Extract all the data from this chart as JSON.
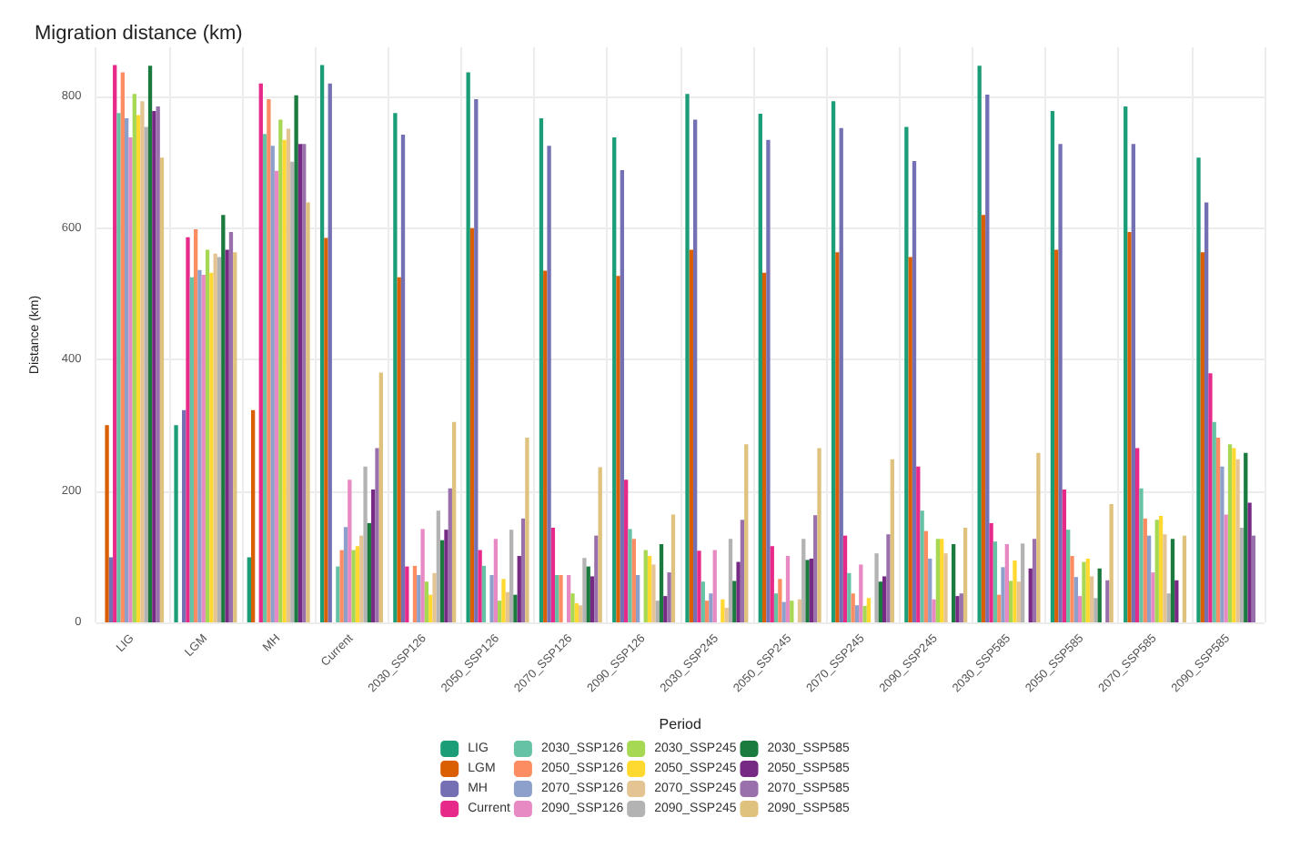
{
  "chart_data": {
    "type": "bar",
    "title": "Migration distance (km)",
    "xlabel": "Period",
    "ylabel": "Distance (km)",
    "categories": [
      "LIG",
      "LGM",
      "MH",
      "Current",
      "2030_SSP126",
      "2050_SSP126",
      "2070_SSP126",
      "2090_SSP126",
      "2030_SSP245",
      "2050_SSP245",
      "2070_SSP245",
      "2090_SSP245",
      "2030_SSP585",
      "2050_SSP585",
      "2070_SSP585",
      "2090_SSP585"
    ],
    "ylim": [
      0,
      875
    ],
    "yticks": [
      0,
      200,
      400,
      600,
      800
    ],
    "grid": true,
    "legend": "bottom",
    "series": [
      {
        "name": "LIG",
        "color": "#1b9e77",
        "values": [
          null,
          300,
          99,
          848,
          775,
          837,
          767,
          738,
          804,
          774,
          793,
          754,
          847,
          778,
          785,
          707
        ]
      },
      {
        "name": "LGM",
        "color": "#d95f02",
        "values": [
          300,
          null,
          323,
          585,
          525,
          600,
          535,
          527,
          567,
          532,
          563,
          556,
          620,
          567,
          594,
          563
        ]
      },
      {
        "name": "MH",
        "color": "#7570b3",
        "values": [
          99,
          323,
          null,
          820,
          742,
          796,
          725,
          688,
          765,
          734,
          752,
          702,
          803,
          728,
          728,
          639
        ]
      },
      {
        "name": "Current",
        "color": "#e7298a",
        "values": [
          848,
          586,
          820,
          null,
          85,
          110,
          144,
          217,
          109,
          116,
          132,
          237,
          151,
          202,
          265,
          379
        ]
      },
      {
        "name": "2030_SSP126",
        "color": "#66c2a5",
        "values": [
          775,
          525,
          743,
          85,
          null,
          86,
          72,
          142,
          62,
          44,
          75,
          170,
          123,
          141,
          204,
          305
        ]
      },
      {
        "name": "2050_SSP126",
        "color": "#fc8d62",
        "values": [
          837,
          598,
          796,
          110,
          86,
          null,
          72,
          127,
          33,
          66,
          44,
          139,
          42,
          101,
          158,
          281
        ]
      },
      {
        "name": "2070_SSP126",
        "color": "#8da0cb",
        "values": [
          767,
          536,
          725,
          145,
          72,
          72,
          null,
          72,
          44,
          31,
          26,
          97,
          84,
          69,
          132,
          237
        ]
      },
      {
        "name": "2090_SSP126",
        "color": "#e78ac3",
        "values": [
          738,
          529,
          687,
          217,
          142,
          127,
          72,
          null,
          110,
          101,
          88,
          35,
          119,
          40,
          76,
          164
        ]
      },
      {
        "name": "2030_SSP245",
        "color": "#a6d854",
        "values": [
          804,
          567,
          765,
          110,
          62,
          33,
          44,
          110,
          null,
          33,
          25,
          127,
          63,
          92,
          156,
          271
        ]
      },
      {
        "name": "2050_SSP245",
        "color": "#ffd92f",
        "values": [
          772,
          532,
          734,
          116,
          42,
          66,
          29,
          101,
          35,
          null,
          37,
          127,
          94,
          97,
          162,
          265
        ]
      },
      {
        "name": "2070_SSP245",
        "color": "#e5c494",
        "values": [
          793,
          561,
          751,
          132,
          75,
          46,
          26,
          88,
          22,
          35,
          null,
          105,
          62,
          70,
          134,
          248
        ]
      },
      {
        "name": "2090_SSP245",
        "color": "#b3b3b3",
        "values": [
          754,
          556,
          701,
          237,
          170,
          141,
          98,
          33,
          127,
          127,
          105,
          null,
          120,
          37,
          44,
          144
        ]
      },
      {
        "name": "2030_SSP585",
        "color": "#1b7a3e",
        "values": [
          847,
          620,
          802,
          151,
          125,
          42,
          85,
          119,
          63,
          95,
          62,
          119,
          null,
          82,
          127,
          258
        ]
      },
      {
        "name": "2050_SSP585",
        "color": "#762a83",
        "values": [
          778,
          567,
          728,
          202,
          141,
          101,
          70,
          40,
          92,
          97,
          70,
          40,
          82,
          null,
          64,
          182
        ]
      },
      {
        "name": "2070_SSP585",
        "color": "#9970ab",
        "values": [
          785,
          594,
          728,
          265,
          204,
          158,
          132,
          76,
          156,
          163,
          134,
          44,
          127,
          64,
          null,
          132
        ]
      },
      {
        "name": "2090_SSP585",
        "color": "#dfc27d",
        "values": [
          707,
          563,
          639,
          380,
          305,
          281,
          236,
          164,
          271,
          265,
          248,
          144,
          258,
          180,
          132,
          null
        ]
      }
    ]
  }
}
